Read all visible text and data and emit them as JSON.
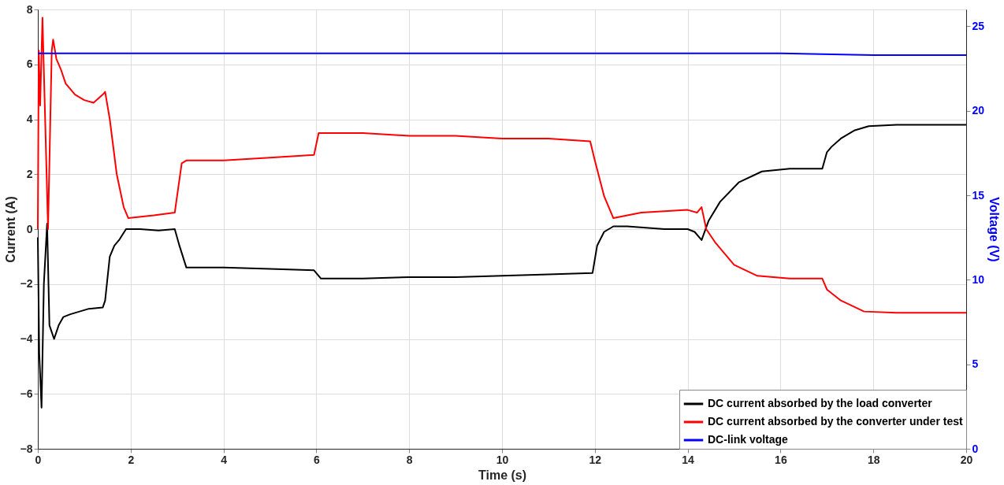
{
  "chart_data": {
    "type": "line",
    "xlabel": "Time (s)",
    "ylabel": "Current (A)",
    "y2label": "Voltage (V)",
    "xlim": [
      0,
      20
    ],
    "xticks": [
      0,
      2,
      4,
      6,
      8,
      10,
      12,
      14,
      16,
      18,
      20
    ],
    "ylim": [
      -8,
      8
    ],
    "yticks": [
      -8,
      -6,
      -4,
      -2,
      0,
      2,
      4,
      6,
      8
    ],
    "y2lim": [
      0,
      26
    ],
    "y2ticks": [
      0,
      5,
      10,
      15,
      20,
      25
    ],
    "grid": true,
    "legend": "bottom right",
    "line_style": "solid",
    "series": [
      {
        "name": "DC current absorbed by the load converter",
        "color": "#000000",
        "x": [
          0,
          0.03,
          0.08,
          0.13,
          0.2,
          0.25,
          0.35,
          0.45,
          0.55,
          0.7,
          0.9,
          1.1,
          1.4,
          1.45,
          1.55,
          1.65,
          1.75,
          1.9,
          2.2,
          2.6,
          2.95,
          3.05,
          3.2,
          4,
          5,
          5.95,
          6.1,
          7,
          8,
          9,
          10,
          11,
          11.95,
          12.05,
          12.2,
          12.4,
          12.7,
          13.5,
          14.0,
          14.15,
          14.3,
          14.45,
          14.7,
          15.1,
          15.6,
          16.2,
          16.9,
          17.0,
          17.1,
          17.3,
          17.6,
          17.9,
          18.5,
          19.2,
          20
        ],
        "values": [
          -0.3,
          -4.5,
          -6.5,
          -2.0,
          0.2,
          -3.5,
          -4.0,
          -3.5,
          -3.2,
          -3.1,
          -3.0,
          -2.9,
          -2.85,
          -2.6,
          -1.0,
          -0.6,
          -0.4,
          0.0,
          0.0,
          -0.05,
          0.0,
          -0.6,
          -1.4,
          -1.4,
          -1.45,
          -1.5,
          -1.8,
          -1.8,
          -1.75,
          -1.75,
          -1.7,
          -1.65,
          -1.6,
          -0.6,
          -0.1,
          0.1,
          0.1,
          0.0,
          0.0,
          -0.1,
          -0.4,
          0.3,
          1.0,
          1.7,
          2.1,
          2.2,
          2.2,
          2.8,
          3.0,
          3.3,
          3.6,
          3.75,
          3.8,
          3.8,
          3.8
        ]
      },
      {
        "name": "DC current absorbed by the converter under test",
        "color": "#ff0000",
        "x": [
          0,
          0.02,
          0.05,
          0.1,
          0.15,
          0.22,
          0.3,
          0.33,
          0.4,
          0.5,
          0.6,
          0.8,
          1.0,
          1.2,
          1.4,
          1.45,
          1.55,
          1.7,
          1.85,
          1.95,
          2.5,
          2.95,
          3.1,
          3.2,
          4,
          5,
          5.95,
          6.05,
          7,
          8,
          9,
          10,
          11,
          11.9,
          12.0,
          12.2,
          12.4,
          13,
          14,
          14.2,
          14.3,
          14.4,
          14.6,
          15,
          15.5,
          16.2,
          16.9,
          17.0,
          17.3,
          17.8,
          18.5,
          19.2,
          20
        ],
        "values": [
          0.0,
          6.5,
          4.5,
          7.7,
          4.5,
          0.0,
          6.5,
          6.9,
          6.2,
          5.8,
          5.3,
          4.9,
          4.7,
          4.6,
          4.9,
          5.0,
          4.0,
          2.0,
          0.8,
          0.4,
          0.5,
          0.6,
          2.4,
          2.5,
          2.5,
          2.6,
          2.7,
          3.5,
          3.5,
          3.4,
          3.4,
          3.3,
          3.3,
          3.2,
          2.5,
          1.2,
          0.4,
          0.6,
          0.7,
          0.6,
          0.8,
          0.0,
          -0.5,
          -1.3,
          -1.7,
          -1.8,
          -1.8,
          -2.2,
          -2.6,
          -3.0,
          -3.05,
          -3.05,
          -3.05
        ]
      },
      {
        "name": "DC-link voltage",
        "color": "#0000ff",
        "axis": "y2",
        "x": [
          0,
          2,
          4,
          6,
          8,
          10,
          12,
          14,
          16,
          18,
          20
        ],
        "values": [
          23.4,
          23.4,
          23.4,
          23.4,
          23.4,
          23.4,
          23.4,
          23.4,
          23.4,
          23.3,
          23.3
        ]
      }
    ]
  }
}
